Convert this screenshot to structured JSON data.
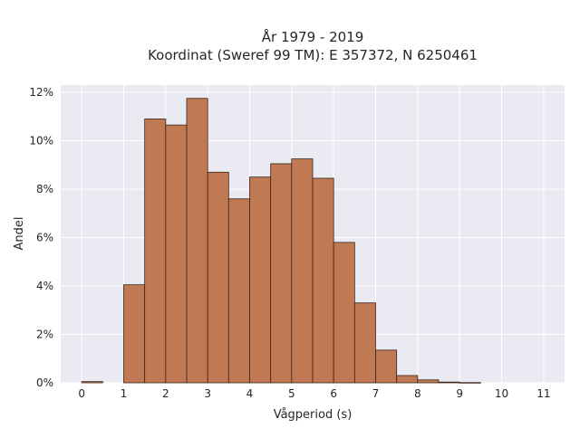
{
  "chart_data": {
    "type": "bar",
    "title_lines": [
      "År 1979 - 2019",
      "Koordinat (Sweref 99 TM): E 357372, N 6250461"
    ],
    "xlabel": "Vågperiod (s)",
    "ylabel": "Andel",
    "x_ticks": [
      "0",
      "1",
      "2",
      "3",
      "4",
      "5",
      "6",
      "7",
      "8",
      "9",
      "10",
      "11"
    ],
    "y_ticks": [
      "0%",
      "2%",
      "4%",
      "6%",
      "8%",
      "10%",
      "12%"
    ],
    "xlim": [
      -0.5,
      11.5
    ],
    "ylim": [
      0,
      12.3
    ],
    "bin_width": 0.5,
    "bins": [
      {
        "start": 0.0,
        "value": 0.05
      },
      {
        "start": 1.0,
        "value": 4.05
      },
      {
        "start": 1.5,
        "value": 10.9
      },
      {
        "start": 2.0,
        "value": 10.65
      },
      {
        "start": 2.5,
        "value": 11.75
      },
      {
        "start": 3.0,
        "value": 8.7
      },
      {
        "start": 3.5,
        "value": 7.6
      },
      {
        "start": 4.0,
        "value": 8.5
      },
      {
        "start": 4.5,
        "value": 9.05
      },
      {
        "start": 5.0,
        "value": 9.25
      },
      {
        "start": 5.5,
        "value": 8.45
      },
      {
        "start": 6.0,
        "value": 5.8
      },
      {
        "start": 6.5,
        "value": 3.3
      },
      {
        "start": 7.0,
        "value": 1.35
      },
      {
        "start": 7.5,
        "value": 0.3
      },
      {
        "start": 8.0,
        "value": 0.12
      },
      {
        "start": 8.5,
        "value": 0.03
      },
      {
        "start": 9.0,
        "value": 0.01
      }
    ],
    "grid": true,
    "colors": {
      "bar_fill": "#bf7a54",
      "bar_edge": "#3b2418",
      "plot_background": "#eaeaf2",
      "grid": "#ffffff"
    }
  }
}
